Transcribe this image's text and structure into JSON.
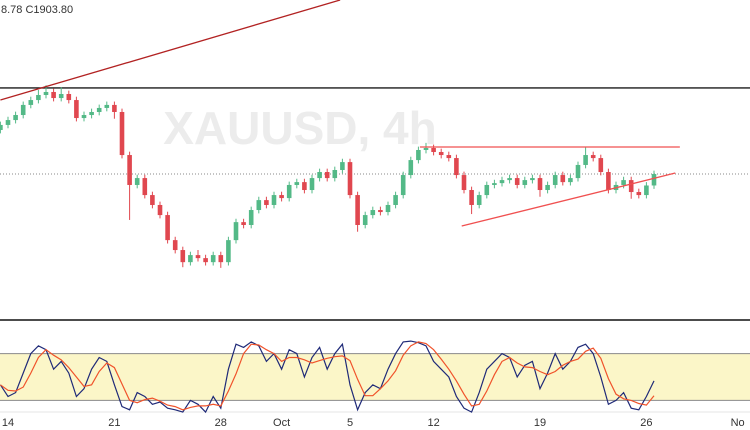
{
  "chart_data": {
    "type": "candlestick",
    "legend_text": "8.78 C1903.80",
    "watermark": "XAUUSD, 4h",
    "categories": [
      null,
      "14",
      null,
      null,
      null,
      null,
      null,
      null,
      null,
      null,
      null,
      null,
      null,
      null,
      null,
      "21",
      null,
      null,
      null,
      null,
      null,
      null,
      null,
      null,
      null,
      null,
      null,
      null,
      null,
      "28",
      null,
      null,
      null,
      null,
      null,
      null,
      null,
      "Oct",
      null,
      null,
      null,
      null,
      null,
      null,
      null,
      null,
      "5",
      null,
      null,
      null,
      null,
      null,
      null,
      null,
      null,
      null,
      null,
      "12",
      null,
      null,
      null,
      null,
      null,
      null,
      null,
      null,
      null,
      null,
      null,
      null,
      null,
      "19",
      null,
      null,
      null,
      null,
      null,
      null,
      null,
      null,
      null,
      null,
      null,
      null,
      null,
      "26",
      null,
      null,
      null,
      null,
      null,
      null,
      null,
      null,
      null,
      null,
      null,
      "No"
    ],
    "open": [
      1930.0,
      1933.0,
      1935.9,
      1938.9,
      1944.9,
      1947.8,
      1950.8,
      1952.6,
      1949.0,
      1951.4,
      1947.8,
      1937.1,
      1938.9,
      1940.7,
      1943.1,
      1944.9,
      1940.7,
      1915.1,
      1897.3,
      1901.4,
      1891.3,
      1885.4,
      1879.4,
      1864.5,
      1858.6,
      1851.4,
      1855.6,
      1853.8,
      1851.4,
      1855.6,
      1851.4,
      1864.5,
      1875.2,
      1873.5,
      1882.4,
      1888.3,
      1885.4,
      1891.3,
      1889.5,
      1897.3,
      1899.0,
      1894.3,
      1901.4,
      1905.0,
      1901.4,
      1906.2,
      1910.9,
      1891.3,
      1873.5,
      1879.4,
      1882.4,
      1881.2,
      1885.4,
      1891.3,
      1903.2,
      1912.1,
      1918.1,
      1919.3,
      1916.9,
      1915.1,
      1913.3,
      1903.2,
      1894.3,
      1885.4,
      1891.3,
      1897.3,
      1898.4,
      1900.2,
      1901.4,
      1897.3,
      1900.2,
      1901.4,
      1894.3,
      1897.3,
      1903.2,
      1899.0,
      1901.4,
      1909.2,
      1915.1,
      1913.3,
      1905.0,
      1894.3,
      1897.3,
      1900.2,
      1893.1,
      1891.3,
      1897.0,
      null,
      null,
      null,
      null,
      null,
      null,
      null,
      null,
      null,
      null,
      null
    ],
    "high": [
      1935.0,
      1937.9,
      1940.9,
      1946.9,
      1949.8,
      1953.8,
      1956.6,
      1954.6,
      1955.4,
      1953.4,
      1949.8,
      1940.9,
      1942.7,
      1945.1,
      1946.9,
      1946.9,
      1942.7,
      1917.1,
      1903.4,
      1903.4,
      1893.3,
      1887.4,
      1881.4,
      1866.5,
      1860.6,
      1857.6,
      1858.6,
      1855.8,
      1857.6,
      1857.6,
      1866.5,
      1877.2,
      1877.2,
      1884.4,
      1890.3,
      1890.3,
      1893.3,
      1893.3,
      1899.3,
      1901.0,
      1901.0,
      1903.4,
      1907.0,
      1907.0,
      1908.2,
      1912.9,
      1912.9,
      1893.3,
      1881.4,
      1884.4,
      1884.4,
      1887.4,
      1893.3,
      1905.2,
      1914.1,
      1920.1,
      1922.3,
      1921.3,
      1918.9,
      1917.1,
      1915.3,
      1905.2,
      1896.3,
      1893.3,
      1899.3,
      1900.4,
      1902.2,
      1903.4,
      1903.4,
      1902.2,
      1903.4,
      1903.4,
      1899.3,
      1905.2,
      1905.2,
      1903.4,
      1911.2,
      1920.1,
      1917.1,
      1915.3,
      1907.0,
      1899.3,
      1902.2,
      1902.2,
      1895.1,
      1899.0,
      1905.8,
      null,
      null,
      null,
      null,
      null,
      null,
      null,
      null,
      null,
      null,
      null
    ],
    "low": [
      1928.0,
      1931.0,
      1933.9,
      1936.9,
      1942.9,
      1945.8,
      1948.8,
      1947.0,
      1947.0,
      1945.8,
      1935.1,
      1935.1,
      1936.9,
      1938.7,
      1941.1,
      1936.7,
      1913.1,
      1876.5,
      1895.3,
      1889.3,
      1883.4,
      1877.4,
      1862.5,
      1856.6,
      1848.4,
      1849.4,
      1851.8,
      1849.4,
      1849.4,
      1848.0,
      1849.4,
      1862.5,
      1871.5,
      1871.5,
      1880.4,
      1883.4,
      1883.4,
      1887.5,
      1887.5,
      1895.3,
      1892.3,
      1892.3,
      1899.4,
      1899.4,
      1899.4,
      1904.2,
      1889.3,
      1869.5,
      1871.5,
      1877.4,
      1879.2,
      1879.2,
      1883.4,
      1889.3,
      1901.2,
      1910.1,
      1916.1,
      1914.9,
      1913.1,
      1911.3,
      1901.2,
      1892.3,
      1880.0,
      1883.4,
      1889.3,
      1895.3,
      1896.4,
      1898.2,
      1895.3,
      1895.3,
      1898.2,
      1890.3,
      1892.3,
      1895.3,
      1897.0,
      1897.0,
      1899.4,
      1907.2,
      1911.3,
      1903.0,
      1892.3,
      1892.3,
      1895.3,
      1889.1,
      1889.3,
      1889.3,
      1895.0,
      null,
      null,
      null,
      null,
      null,
      null,
      null,
      null,
      null,
      null,
      null
    ],
    "close": [
      1933.0,
      1935.9,
      1938.9,
      1944.9,
      1947.8,
      1950.8,
      1952.6,
      1949.0,
      1951.4,
      1947.8,
      1937.1,
      1938.9,
      1940.7,
      1943.1,
      1944.9,
      1940.7,
      1915.1,
      1897.3,
      1901.4,
      1891.3,
      1885.4,
      1879.4,
      1864.5,
      1858.6,
      1851.4,
      1855.6,
      1853.8,
      1851.4,
      1855.6,
      1851.4,
      1864.5,
      1875.2,
      1873.5,
      1882.4,
      1888.3,
      1885.4,
      1891.3,
      1889.5,
      1897.3,
      1899.0,
      1894.3,
      1901.4,
      1905.0,
      1901.4,
      1906.2,
      1910.9,
      1891.3,
      1873.5,
      1879.4,
      1882.4,
      1881.2,
      1885.4,
      1891.3,
      1903.2,
      1912.1,
      1918.1,
      1919.3,
      1916.9,
      1915.1,
      1913.3,
      1903.2,
      1894.3,
      1885.4,
      1891.3,
      1897.3,
      1898.4,
      1900.2,
      1901.4,
      1897.3,
      1900.2,
      1901.4,
      1894.3,
      1897.3,
      1903.2,
      1899.0,
      1901.4,
      1909.2,
      1915.1,
      1913.3,
      1905.0,
      1894.3,
      1897.3,
      1900.2,
      1893.1,
      1891.3,
      1897.0,
      1903.8,
      null,
      null,
      null,
      null,
      null,
      null,
      null,
      null,
      null,
      null,
      null
    ],
    "up_color": "#53b987",
    "down_color": "#e0474f",
    "ylim": [
      1817.0,
      2007.3
    ],
    "hlines": [
      {
        "value": 1955.0,
        "color": "#1a1a1a"
      }
    ],
    "trendlines": [
      {
        "x": [
          0,
          44.7
        ],
        "y": [
          1947.8,
          2007.3
        ],
        "color": "#b22222"
      },
      {
        "x": [
          55.2,
          89.4
        ],
        "y": [
          1919.9,
          1919.9
        ],
        "color": "#f05050"
      },
      {
        "x": [
          60.7,
          88.8
        ],
        "y": [
          1872.9,
          1904.4
        ],
        "color": "#f05050"
      }
    ],
    "oscillator": {
      "ylim": [
        0,
        100
      ],
      "band": [
        20,
        80
      ],
      "band_color": "#fbf6c8",
      "series": [
        {
          "color": "#1f2a78",
          "values": [
            40,
            25,
            30,
            55,
            80,
            90,
            85,
            60,
            70,
            55,
            25,
            35,
            60,
            75,
            70,
            40,
            12,
            8,
            30,
            25,
            15,
            18,
            10,
            8,
            5,
            20,
            15,
            5,
            25,
            10,
            60,
            92,
            88,
            95,
            90,
            70,
            80,
            60,
            85,
            80,
            50,
            75,
            88,
            60,
            80,
            92,
            40,
            8,
            30,
            40,
            35,
            60,
            80,
            95,
            96,
            94,
            90,
            70,
            60,
            50,
            25,
            10,
            5,
            30,
            60,
            70,
            80,
            75,
            50,
            65,
            70,
            35,
            55,
            80,
            60,
            70,
            88,
            92,
            80,
            50,
            15,
            20,
            30,
            10,
            8,
            25,
            45,
            null,
            null,
            null,
            null,
            null,
            null,
            null,
            null,
            null,
            null,
            null
          ]
        },
        {
          "color": "#f0532b",
          "values": [
            40,
            33,
            32,
            37,
            55,
            75,
            85,
            78,
            72,
            62,
            50,
            38,
            40,
            57,
            68,
            62,
            41,
            20,
            17,
            21,
            23,
            19,
            14,
            12,
            8,
            11,
            13,
            13,
            15,
            13,
            32,
            54,
            80,
            92,
            91,
            85,
            80,
            70,
            75,
            75,
            72,
            68,
            71,
            74,
            76,
            77,
            71,
            47,
            26,
            26,
            35,
            45,
            58,
            78,
            90,
            95,
            93,
            85,
            73,
            60,
            45,
            28,
            13,
            15,
            32,
            53,
            70,
            75,
            68,
            63,
            62,
            57,
            53,
            57,
            65,
            70,
            73,
            83,
            87,
            74,
            48,
            28,
            22,
            20,
            16,
            14,
            26,
            null,
            null,
            null,
            null,
            null,
            null,
            null,
            null,
            null,
            null,
            null
          ]
        }
      ]
    }
  }
}
